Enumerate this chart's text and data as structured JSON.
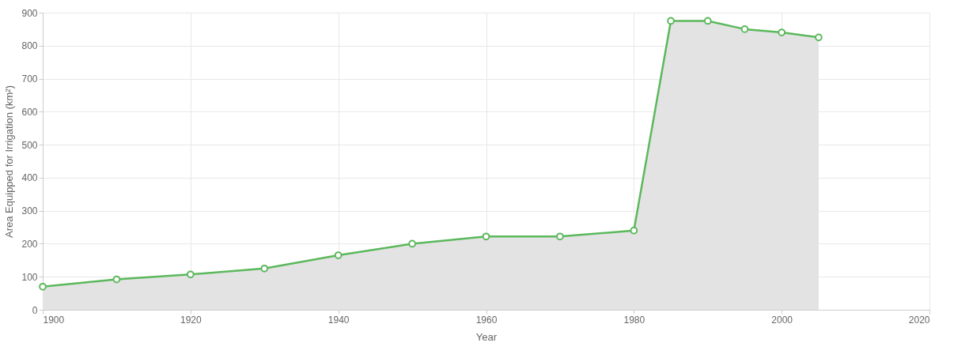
{
  "chart_data": {
    "type": "area",
    "xlabel": "Year",
    "ylabel": "Area Equipped for Irrigation (km²)",
    "x": [
      1900,
      1910,
      1920,
      1930,
      1940,
      1950,
      1960,
      1970,
      1980,
      1985,
      1990,
      1995,
      2000,
      2005
    ],
    "series": [
      {
        "color": "#5cb85c",
        "values": [
          70,
          92,
          107,
          125,
          165,
          200,
          222,
          222,
          240,
          875,
          875,
          850,
          840,
          825
        ]
      }
    ],
    "xlim": [
      1900,
      2020
    ],
    "xticks": [
      1900,
      1920,
      1940,
      1960,
      1980,
      2000,
      2020
    ],
    "ylim": [
      0,
      900
    ],
    "yticks": [
      0,
      100,
      200,
      300,
      400,
      500,
      600,
      700,
      800,
      900
    ],
    "grid": true,
    "marker": "circle"
  }
}
